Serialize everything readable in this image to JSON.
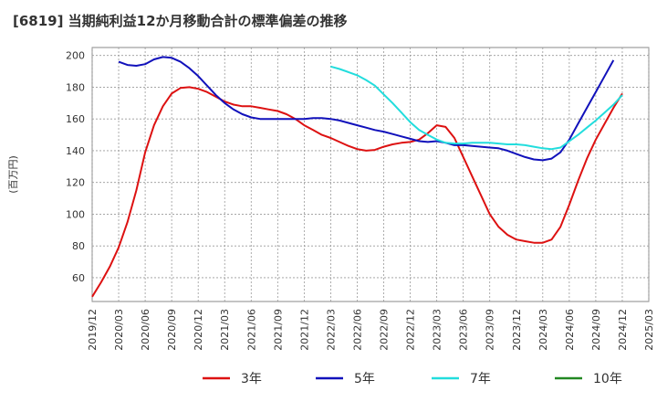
{
  "title": "[6819]  当期純利益12か月移動合計の標準偏差の推移",
  "chart_data": {
    "type": "line",
    "ylabel": "(百万円)",
    "ylim": [
      45,
      205
    ],
    "yticks": [
      60,
      80,
      100,
      120,
      140,
      160,
      180,
      200
    ],
    "xlim": [
      "2019-12",
      "2025-03"
    ],
    "xticks": [
      "2019/12",
      "2020/03",
      "2020/06",
      "2020/09",
      "2020/12",
      "2021/03",
      "2021/06",
      "2021/09",
      "2021/12",
      "2022/03",
      "2022/06",
      "2022/09",
      "2022/12",
      "2023/03",
      "2023/06",
      "2023/09",
      "2023/12",
      "2024/03",
      "2024/06",
      "2024/09",
      "2024/12",
      "2025/03"
    ],
    "grid": true,
    "legend_position": "bottom",
    "series": [
      {
        "name": "3年",
        "color": "#dd1111",
        "points": [
          [
            "2019-12",
            48
          ],
          [
            "2020-01",
            57
          ],
          [
            "2020-02",
            67
          ],
          [
            "2020-03",
            79
          ],
          [
            "2020-04",
            95
          ],
          [
            "2020-05",
            115
          ],
          [
            "2020-06",
            139
          ],
          [
            "2020-07",
            156
          ],
          [
            "2020-08",
            168
          ],
          [
            "2020-09",
            176
          ],
          [
            "2020-10",
            179.5
          ],
          [
            "2020-11",
            180
          ],
          [
            "2020-12",
            179
          ],
          [
            "2021-01",
            177
          ],
          [
            "2021-02",
            174
          ],
          [
            "2021-03",
            171
          ],
          [
            "2021-04",
            169
          ],
          [
            "2021-05",
            168
          ],
          [
            "2021-06",
            168
          ],
          [
            "2021-07",
            167
          ],
          [
            "2021-08",
            166
          ],
          [
            "2021-09",
            165
          ],
          [
            "2021-10",
            163
          ],
          [
            "2021-11",
            160
          ],
          [
            "2021-12",
            156
          ],
          [
            "2022-01",
            153
          ],
          [
            "2022-02",
            150
          ],
          [
            "2022-03",
            148
          ],
          [
            "2022-04",
            145.5
          ],
          [
            "2022-05",
            143
          ],
          [
            "2022-06",
            141
          ],
          [
            "2022-07",
            140
          ],
          [
            "2022-08",
            140.5
          ],
          [
            "2022-09",
            142.5
          ],
          [
            "2022-10",
            144
          ],
          [
            "2022-11",
            145
          ],
          [
            "2022-12",
            145.5
          ],
          [
            "2023-01",
            147
          ],
          [
            "2023-02",
            151
          ],
          [
            "2023-03",
            156
          ],
          [
            "2023-04",
            155
          ],
          [
            "2023-05",
            148
          ],
          [
            "2023-06",
            136
          ],
          [
            "2023-07",
            124
          ],
          [
            "2023-08",
            112
          ],
          [
            "2023-09",
            100
          ],
          [
            "2023-10",
            92
          ],
          [
            "2023-11",
            87
          ],
          [
            "2023-12",
            84
          ],
          [
            "2024-01",
            83
          ],
          [
            "2024-02",
            82
          ],
          [
            "2024-03",
            82
          ],
          [
            "2024-04",
            84
          ],
          [
            "2024-05",
            92
          ],
          [
            "2024-06",
            106
          ],
          [
            "2024-07",
            121
          ],
          [
            "2024-08",
            135
          ],
          [
            "2024-09",
            147
          ],
          [
            "2024-10",
            157
          ],
          [
            "2024-11",
            167
          ],
          [
            "2024-12",
            176
          ]
        ]
      },
      {
        "name": "5年",
        "color": "#1111bb",
        "points": [
          [
            "2020-03",
            196
          ],
          [
            "2020-04",
            194
          ],
          [
            "2020-05",
            193.5
          ],
          [
            "2020-06",
            194.5
          ],
          [
            "2020-07",
            197.5
          ],
          [
            "2020-08",
            199
          ],
          [
            "2020-09",
            198.5
          ],
          [
            "2020-10",
            196
          ],
          [
            "2020-11",
            192
          ],
          [
            "2020-12",
            187
          ],
          [
            "2021-01",
            181
          ],
          [
            "2021-02",
            175
          ],
          [
            "2021-03",
            170
          ],
          [
            "2021-04",
            166
          ],
          [
            "2021-05",
            163
          ],
          [
            "2021-06",
            161
          ],
          [
            "2021-07",
            160
          ],
          [
            "2021-08",
            160
          ],
          [
            "2021-09",
            160
          ],
          [
            "2021-10",
            160
          ],
          [
            "2021-11",
            160
          ],
          [
            "2021-12",
            160
          ],
          [
            "2022-01",
            160.5
          ],
          [
            "2022-02",
            160.5
          ],
          [
            "2022-03",
            160
          ],
          [
            "2022-04",
            159
          ],
          [
            "2022-05",
            157.5
          ],
          [
            "2022-06",
            156
          ],
          [
            "2022-07",
            154.5
          ],
          [
            "2022-08",
            153
          ],
          [
            "2022-09",
            152
          ],
          [
            "2022-10",
            150.5
          ],
          [
            "2022-11",
            149
          ],
          [
            "2022-12",
            147.5
          ],
          [
            "2023-01",
            146
          ],
          [
            "2023-02",
            145.5
          ],
          [
            "2023-03",
            146
          ],
          [
            "2023-04",
            145
          ],
          [
            "2023-05",
            143.5
          ],
          [
            "2023-06",
            143.5
          ],
          [
            "2023-07",
            143
          ],
          [
            "2023-08",
            142.5
          ],
          [
            "2023-09",
            142
          ],
          [
            "2023-10",
            141.5
          ],
          [
            "2023-11",
            140
          ],
          [
            "2023-12",
            138
          ],
          [
            "2024-01",
            136
          ],
          [
            "2024-02",
            134.5
          ],
          [
            "2024-03",
            134
          ],
          [
            "2024-04",
            135
          ],
          [
            "2024-05",
            139
          ],
          [
            "2024-06",
            147
          ],
          [
            "2024-07",
            157
          ],
          [
            "2024-08",
            167
          ],
          [
            "2024-09",
            177
          ],
          [
            "2024-10",
            187
          ],
          [
            "2024-11",
            197
          ]
        ]
      },
      {
        "name": "7年",
        "color": "#22dddd",
        "points": [
          [
            "2022-03",
            193
          ],
          [
            "2022-04",
            191.5
          ],
          [
            "2022-05",
            189.5
          ],
          [
            "2022-06",
            187.5
          ],
          [
            "2022-07",
            184.5
          ],
          [
            "2022-08",
            181
          ],
          [
            "2022-09",
            175.5
          ],
          [
            "2022-10",
            170
          ],
          [
            "2022-11",
            164
          ],
          [
            "2022-12",
            158
          ],
          [
            "2023-01",
            153
          ],
          [
            "2023-02",
            150
          ],
          [
            "2023-03",
            147
          ],
          [
            "2023-04",
            145
          ],
          [
            "2023-05",
            144.5
          ],
          [
            "2023-06",
            144.5
          ],
          [
            "2023-07",
            145
          ],
          [
            "2023-08",
            145
          ],
          [
            "2023-09",
            145
          ],
          [
            "2023-10",
            144.5
          ],
          [
            "2023-11",
            144
          ],
          [
            "2023-12",
            144
          ],
          [
            "2024-01",
            143.5
          ],
          [
            "2024-02",
            142.5
          ],
          [
            "2024-03",
            141.5
          ],
          [
            "2024-04",
            141
          ],
          [
            "2024-05",
            142
          ],
          [
            "2024-06",
            146
          ],
          [
            "2024-07",
            150
          ],
          [
            "2024-08",
            154.5
          ],
          [
            "2024-09",
            159
          ],
          [
            "2024-10",
            164
          ],
          [
            "2024-11",
            169
          ],
          [
            "2024-12",
            175
          ]
        ]
      },
      {
        "name": "10年",
        "color": "#228822",
        "points": []
      }
    ]
  }
}
